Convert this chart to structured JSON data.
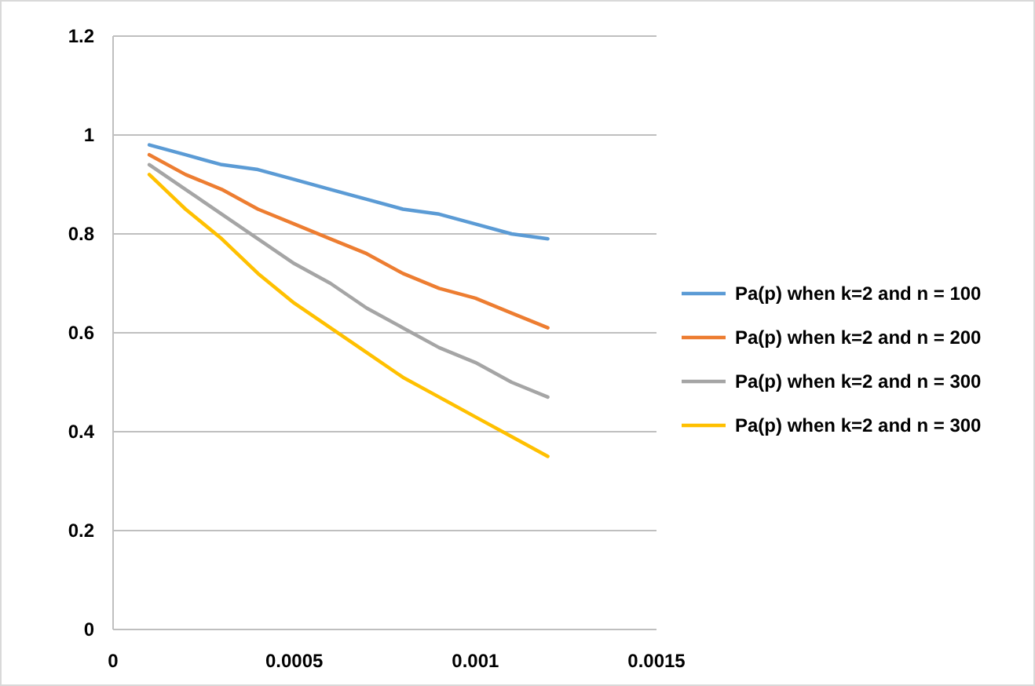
{
  "chart_data": {
    "type": "line",
    "x": [
      0.0001,
      0.0002,
      0.0003,
      0.0004,
      0.0005,
      0.0006,
      0.0007,
      0.0008,
      0.0009,
      0.001,
      0.0011,
      0.0012
    ],
    "series": [
      {
        "name": "Pa(p) when k=2 and n = 100",
        "color": "#5b9bd5",
        "values": [
          0.98,
          0.96,
          0.94,
          0.93,
          0.91,
          0.89,
          0.87,
          0.85,
          0.84,
          0.82,
          0.8,
          0.79
        ]
      },
      {
        "name": "Pa(p) when k=2 and n = 200",
        "color": "#ed7d31",
        "values": [
          0.96,
          0.92,
          0.89,
          0.85,
          0.82,
          0.79,
          0.76,
          0.72,
          0.69,
          0.67,
          0.64,
          0.61
        ]
      },
      {
        "name": "Pa(p) when k=2 and n = 300",
        "color": "#a5a5a5",
        "values": [
          0.94,
          0.89,
          0.84,
          0.79,
          0.74,
          0.7,
          0.65,
          0.61,
          0.57,
          0.54,
          0.5,
          0.47
        ]
      },
      {
        "name": "Pa(p) when k=2 and n = 300",
        "color": "#ffc000",
        "values": [
          0.92,
          0.85,
          0.79,
          0.72,
          0.66,
          0.61,
          0.56,
          0.51,
          0.47,
          0.43,
          0.39,
          0.35
        ]
      }
    ],
    "xlim": [
      0,
      0.0015
    ],
    "xticks": [
      0,
      0.0005,
      0.001,
      0.0015
    ],
    "ylim": [
      0,
      1.2
    ],
    "yticks": [
      0,
      0.2,
      0.4,
      0.6,
      0.8,
      1,
      1.2
    ],
    "grid": "y",
    "legend": "right",
    "marker": "none",
    "line_style": "solid"
  }
}
